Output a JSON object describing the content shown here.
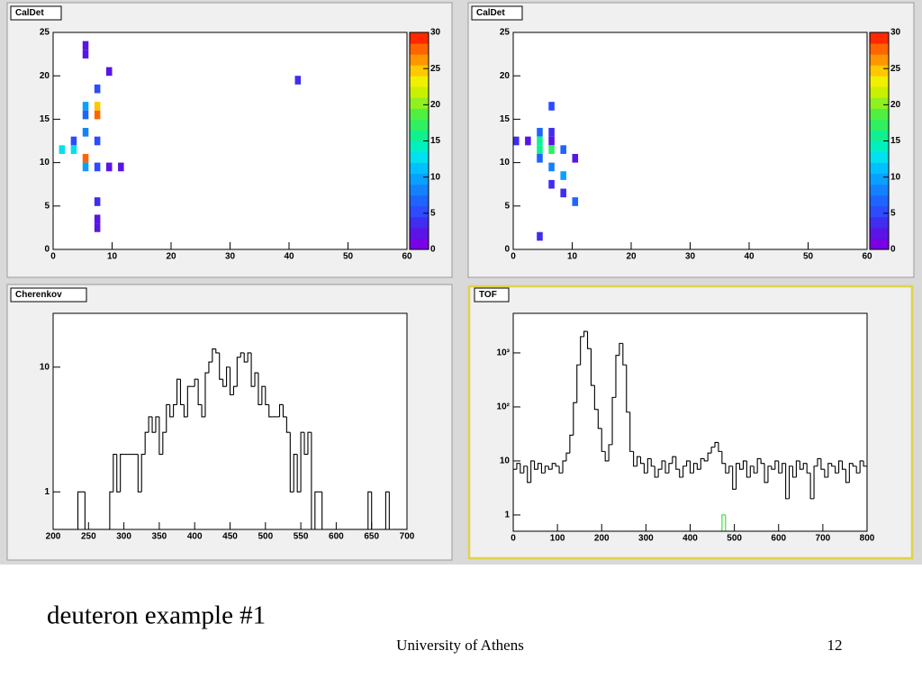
{
  "chart_data": [
    {
      "type": "heatmap",
      "title": "CalDet",
      "xlim": [
        0,
        60
      ],
      "xticks": [
        0,
        10,
        20,
        30,
        40,
        50,
        60
      ],
      "ylim": [
        0,
        25
      ],
      "yticks": [
        0,
        5,
        10,
        15,
        20,
        25
      ],
      "zlim": [
        0,
        30
      ],
      "zticks": [
        0,
        5,
        10,
        15,
        20,
        25,
        30
      ],
      "xbins": 60,
      "ybins": 25,
      "palette": [
        "#7a00e6",
        "#5a14e6",
        "#3f2df0",
        "#2d4bff",
        "#1e64ff",
        "#1482ff",
        "#0aa0ff",
        "#00c0ff",
        "#00e0f0",
        "#00f0c0",
        "#10f090",
        "#30f060",
        "#50f040",
        "#90f020",
        "#c8f000",
        "#f0f000",
        "#ffc800",
        "#ff9600",
        "#ff6400",
        "#ff2800"
      ],
      "x": [
        5,
        5,
        9,
        7,
        41,
        5,
        7,
        5,
        7,
        5,
        3,
        7,
        1,
        3,
        5,
        5,
        7,
        9,
        11,
        7,
        7,
        7
      ],
      "y": [
        22,
        23,
        20,
        18,
        19,
        16,
        16,
        15,
        15,
        13,
        12,
        12,
        11,
        11,
        10,
        9,
        9,
        9,
        9,
        5,
        3,
        2
      ],
      "values": [
        2,
        2,
        2,
        5,
        3,
        10,
        24,
        7,
        28,
        8,
        5,
        5,
        13,
        12,
        27,
        9,
        5,
        2,
        2,
        4,
        2,
        2
      ]
    },
    {
      "type": "heatmap",
      "title": "CalDet",
      "xlim": [
        0,
        60
      ],
      "xticks": [
        0,
        10,
        20,
        30,
        40,
        50,
        60
      ],
      "ylim": [
        0,
        25
      ],
      "yticks": [
        0,
        5,
        10,
        15,
        20,
        25
      ],
      "zlim": [
        0,
        30
      ],
      "zticks": [
        0,
        5,
        10,
        15,
        20,
        25,
        30
      ],
      "xbins": 60,
      "ybins": 25,
      "palette": [
        "#7a00e6",
        "#5a14e6",
        "#3f2df0",
        "#2d4bff",
        "#1e64ff",
        "#1482ff",
        "#0aa0ff",
        "#00c0ff",
        "#00e0f0",
        "#00f0c0",
        "#10f090",
        "#30f060",
        "#50f040",
        "#90f020",
        "#c8f000",
        "#f0f000",
        "#ffc800",
        "#ff9600",
        "#ff6400",
        "#ff2800"
      ],
      "x": [
        6,
        0,
        2,
        4,
        4,
        4,
        4,
        6,
        6,
        6,
        8,
        10,
        6,
        8,
        6,
        8,
        10,
        4
      ],
      "y": [
        16,
        12,
        12,
        13,
        12,
        11,
        10,
        13,
        12,
        11,
        11,
        10,
        9,
        8,
        7,
        6,
        5,
        1
      ],
      "values": [
        5,
        3,
        2,
        6,
        15,
        16,
        6,
        3,
        2,
        17,
        7,
        2,
        8,
        10,
        4,
        3,
        6,
        3
      ]
    },
    {
      "type": "histogram",
      "title": "Cherenkov",
      "log_y": true,
      "color": "#000000",
      "xlim": [
        200,
        700
      ],
      "xticks": [
        200,
        250,
        300,
        350,
        400,
        450,
        500,
        550,
        600,
        650,
        700
      ],
      "ylim": [
        0.5,
        27
      ],
      "yticks": [
        1,
        10
      ],
      "bins": [
        200,
        205,
        210,
        215,
        220,
        225,
        230,
        235,
        240,
        245,
        250,
        255,
        260,
        265,
        270,
        275,
        280,
        285,
        290,
        295,
        300,
        305,
        310,
        315,
        320,
        325,
        330,
        335,
        340,
        345,
        350,
        355,
        360,
        365,
        370,
        375,
        380,
        385,
        390,
        395,
        400,
        405,
        410,
        415,
        420,
        425,
        430,
        435,
        440,
        445,
        450,
        455,
        460,
        465,
        470,
        475,
        480,
        485,
        490,
        495,
        500,
        505,
        510,
        515,
        520,
        525,
        530,
        535,
        540,
        545,
        550,
        555,
        560,
        565,
        570,
        575,
        580,
        585,
        590,
        595,
        600,
        605,
        610,
        615,
        620,
        625,
        630,
        635,
        640,
        645,
        650,
        655,
        660,
        665,
        670,
        675,
        680,
        685,
        690,
        695,
        700
      ],
      "values": [
        0,
        0,
        0,
        0,
        0,
        0,
        0,
        1,
        1,
        0,
        0,
        0,
        0,
        0,
        0,
        0,
        1,
        2,
        1,
        2,
        2,
        2,
        2,
        2,
        1,
        2,
        3,
        4,
        3,
        4,
        2,
        3,
        5,
        4,
        5,
        8,
        5,
        4,
        7,
        7,
        8,
        5,
        4,
        9,
        11,
        14,
        13,
        8,
        7,
        10,
        6,
        7,
        12,
        13,
        11,
        13,
        7,
        9,
        5,
        7,
        5,
        4,
        4,
        4,
        5,
        4,
        3,
        1,
        2,
        1,
        3,
        2,
        3,
        0,
        1,
        1,
        0,
        0,
        0,
        0,
        0,
        0,
        0,
        0,
        0,
        0,
        0,
        0,
        0,
        1,
        0,
        0,
        0,
        0,
        1,
        0,
        0,
        0,
        0,
        0
      ]
    },
    {
      "type": "histogram",
      "title": "TOF",
      "log_y": true,
      "xlim": [
        0,
        800
      ],
      "xticks": [
        0,
        100,
        200,
        300,
        400,
        500,
        600,
        700,
        800
      ],
      "ylim": [
        0.5,
        5400
      ],
      "yticks": [
        1,
        10,
        {
          "value": 100,
          "label": "10²"
        },
        {
          "value": 1000,
          "label": "10³"
        }
      ],
      "bins": [
        0,
        8,
        16,
        24,
        32,
        40,
        48,
        56,
        64,
        72,
        80,
        88,
        96,
        104,
        112,
        120,
        128,
        136,
        144,
        152,
        160,
        168,
        176,
        184,
        192,
        200,
        208,
        216,
        224,
        232,
        240,
        248,
        256,
        264,
        272,
        280,
        288,
        296,
        304,
        312,
        320,
        328,
        336,
        344,
        352,
        360,
        368,
        376,
        384,
        392,
        400,
        408,
        416,
        424,
        432,
        440,
        448,
        456,
        464,
        472,
        480,
        488,
        496,
        504,
        512,
        520,
        528,
        536,
        544,
        552,
        560,
        568,
        576,
        584,
        592,
        600,
        608,
        616,
        624,
        632,
        640,
        648,
        656,
        664,
        672,
        680,
        688,
        696,
        704,
        712,
        720,
        728,
        736,
        744,
        752,
        760,
        768,
        776,
        784,
        792,
        800
      ],
      "series": [
        {
          "color": "#000000",
          "values": [
            7,
            9,
            6,
            8,
            4,
            10,
            7,
            9,
            6,
            8,
            7,
            9,
            8,
            6,
            10,
            14,
            30,
            120,
            600,
            2000,
            2500,
            1200,
            250,
            90,
            40,
            15,
            10,
            20,
            150,
            900,
            1500,
            600,
            80,
            15,
            8,
            12,
            9,
            6,
            11,
            8,
            5,
            7,
            10,
            6,
            9,
            12,
            7,
            5,
            8,
            10,
            6,
            9,
            7,
            11,
            10,
            14,
            18,
            22,
            15,
            9,
            6,
            8,
            3,
            9,
            7,
            10,
            5,
            8,
            6,
            11,
            9,
            4,
            8,
            7,
            10,
            6,
            9,
            2,
            8,
            5,
            10,
            7,
            9,
            6,
            2,
            8,
            11,
            7,
            5,
            9,
            8,
            6,
            10,
            7,
            4,
            9,
            8,
            6,
            10,
            8
          ]
        },
        {
          "color": "#33dd33",
          "values": [
            0,
            0,
            0,
            0,
            0,
            0,
            0,
            0,
            0,
            0,
            0,
            0,
            0,
            0,
            0,
            0,
            0,
            0,
            0,
            0,
            0,
            0,
            0,
            0,
            0,
            0,
            0,
            0,
            0,
            0,
            0,
            0,
            0,
            0,
            0,
            0,
            0,
            0,
            0,
            0,
            0,
            0,
            0,
            0,
            0,
            0,
            0,
            0,
            0,
            0,
            0,
            0,
            0,
            0,
            0,
            0,
            0,
            0,
            0,
            1,
            0,
            0,
            0,
            0,
            0,
            0,
            0,
            0,
            0,
            0,
            0,
            0,
            0,
            0,
            0,
            0,
            0,
            0,
            0,
            0,
            0,
            0,
            0,
            0,
            0,
            0,
            0,
            0,
            0,
            0,
            0,
            0,
            0,
            0,
            0,
            0,
            0,
            0,
            0,
            0
          ]
        }
      ]
    }
  ],
  "slide": {
    "title": "deuteron example #1",
    "footer": "University of Athens",
    "page_number": 12
  }
}
